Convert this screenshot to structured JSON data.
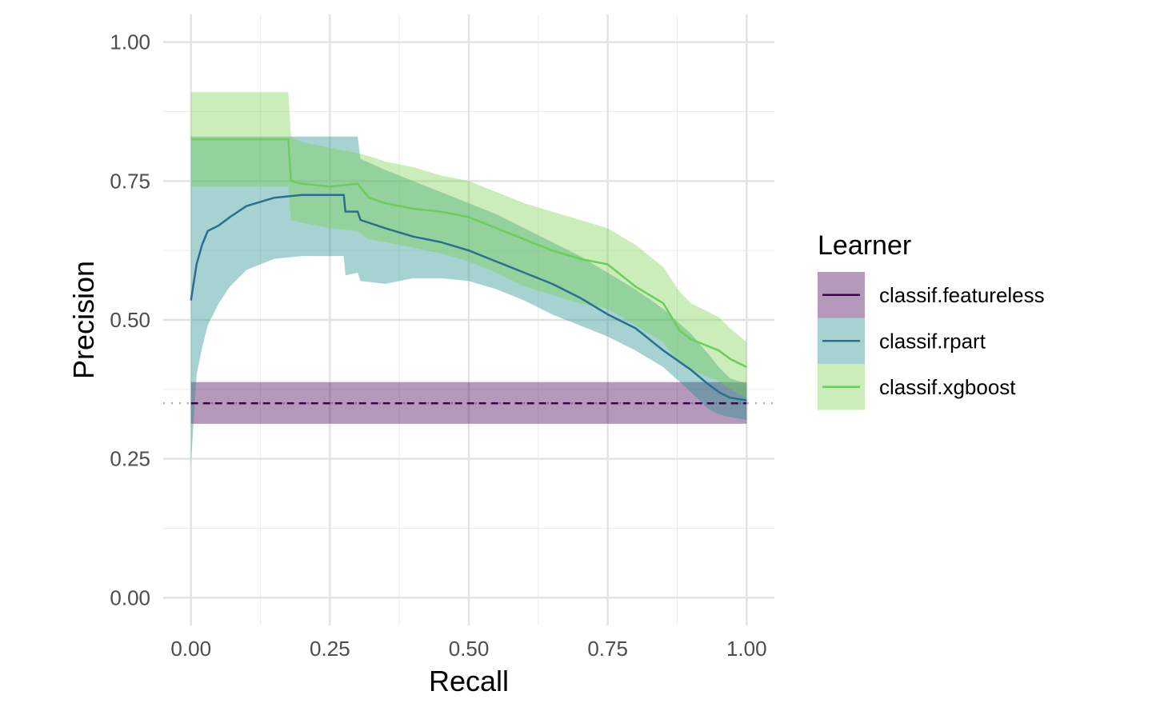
{
  "chart_data": {
    "type": "line",
    "xlabel": "Recall",
    "ylabel": "Precision",
    "xlim": [
      -0.05,
      1.05
    ],
    "ylim": [
      -0.05,
      1.05
    ],
    "x_ticks": [
      0.0,
      0.25,
      0.5,
      0.75,
      1.0
    ],
    "y_ticks": [
      0.0,
      0.25,
      0.5,
      0.75,
      1.0
    ],
    "x_tick_labels": [
      "0.00",
      "0.25",
      "0.50",
      "0.75",
      "1.00"
    ],
    "y_tick_labels": [
      "0.00",
      "0.25",
      "0.50",
      "0.75",
      "1.00"
    ],
    "grid": true,
    "baseline": 0.35,
    "legend": {
      "title": "Learner",
      "placement": "right"
    },
    "series": [
      {
        "name": "classif.featureless",
        "color": "#440154",
        "line_style": "dashed",
        "x": [
          0.0,
          1.0
        ],
        "y": [
          0.35,
          0.35
        ],
        "lower": [
          0.313,
          0.313
        ],
        "upper": [
          0.388,
          0.388
        ]
      },
      {
        "name": "classif.rpart",
        "color": "#21908C",
        "line_color": "#2A6F8F",
        "line_style": "solid",
        "x": [
          0.0,
          0.01,
          0.02,
          0.03,
          0.05,
          0.07,
          0.1,
          0.15,
          0.2,
          0.25,
          0.275,
          0.278,
          0.3,
          0.305,
          0.35,
          0.4,
          0.45,
          0.5,
          0.55,
          0.6,
          0.65,
          0.7,
          0.75,
          0.8,
          0.85,
          0.9,
          0.93,
          0.95,
          0.97,
          1.0
        ],
        "y": [
          0.535,
          0.6,
          0.635,
          0.66,
          0.67,
          0.685,
          0.705,
          0.72,
          0.725,
          0.725,
          0.725,
          0.695,
          0.695,
          0.68,
          0.665,
          0.65,
          0.64,
          0.625,
          0.605,
          0.585,
          0.565,
          0.54,
          0.51,
          0.485,
          0.445,
          0.41,
          0.385,
          0.37,
          0.36,
          0.355
        ],
        "lower": [
          0.24,
          0.4,
          0.45,
          0.49,
          0.53,
          0.56,
          0.59,
          0.61,
          0.615,
          0.615,
          0.615,
          0.58,
          0.585,
          0.57,
          0.565,
          0.575,
          0.575,
          0.57,
          0.555,
          0.535,
          0.51,
          0.49,
          0.47,
          0.445,
          0.415,
          0.37,
          0.34,
          0.33,
          0.325,
          0.32
        ],
        "upper": [
          0.83,
          0.83,
          0.83,
          0.83,
          0.83,
          0.83,
          0.83,
          0.83,
          0.83,
          0.83,
          0.83,
          0.83,
          0.83,
          0.79,
          0.77,
          0.75,
          0.73,
          0.71,
          0.69,
          0.665,
          0.64,
          0.615,
          0.585,
          0.555,
          0.52,
          0.475,
          0.44,
          0.415,
          0.395,
          0.385
        ]
      },
      {
        "name": "classif.xgboost",
        "color": "#7AD151",
        "line_color": "#6DCD59",
        "line_style": "solid",
        "x": [
          0.0,
          0.05,
          0.1,
          0.15,
          0.175,
          0.18,
          0.2,
          0.25,
          0.3,
          0.32,
          0.35,
          0.4,
          0.45,
          0.5,
          0.55,
          0.6,
          0.65,
          0.7,
          0.75,
          0.8,
          0.85,
          0.88,
          0.9,
          0.95,
          0.97,
          1.0
        ],
        "y": [
          0.825,
          0.825,
          0.825,
          0.825,
          0.825,
          0.75,
          0.745,
          0.74,
          0.745,
          0.72,
          0.71,
          0.7,
          0.695,
          0.685,
          0.665,
          0.645,
          0.625,
          0.61,
          0.6,
          0.56,
          0.53,
          0.48,
          0.465,
          0.445,
          0.43,
          0.415
        ],
        "lower": [
          0.74,
          0.74,
          0.74,
          0.74,
          0.74,
          0.68,
          0.675,
          0.665,
          0.66,
          0.645,
          0.64,
          0.63,
          0.62,
          0.605,
          0.585,
          0.56,
          0.545,
          0.53,
          0.52,
          0.49,
          0.46,
          0.42,
          0.41,
          0.39,
          0.375,
          0.36
        ],
        "upper": [
          0.91,
          0.91,
          0.91,
          0.91,
          0.91,
          0.83,
          0.82,
          0.81,
          0.8,
          0.795,
          0.785,
          0.775,
          0.76,
          0.75,
          0.73,
          0.71,
          0.695,
          0.68,
          0.665,
          0.635,
          0.595,
          0.55,
          0.53,
          0.505,
          0.485,
          0.46
        ]
      }
    ]
  }
}
